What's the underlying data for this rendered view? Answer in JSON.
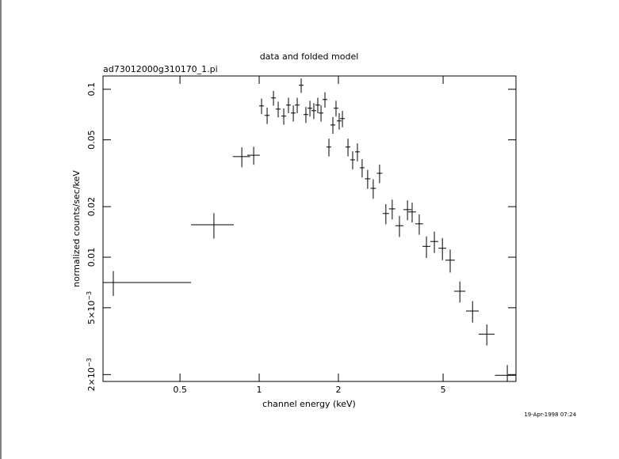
{
  "chart_data": {
    "type": "scatter",
    "title": "data and folded model",
    "subtitle": "ad73012000g310170_1.pi",
    "x_label": "channel energy (keV)",
    "y_label": "normalized counts/sec/keV",
    "annotation": "19-Apr-1998 07:24",
    "log_x": true,
    "log_y": true,
    "color": "#000000",
    "xlim": [
      0.255,
      9.46
    ],
    "ylim": [
      0.00182,
      0.12
    ],
    "xticks": [
      0.5,
      1,
      2,
      5
    ],
    "yticks": [
      {
        "value": 0.002,
        "label": "2×10−3"
      },
      {
        "value": 0.005,
        "label": "5×10−3"
      },
      0.01,
      0.02,
      0.05,
      0.1
    ],
    "x": [
      0.279,
      0.673,
      0.859,
      0.953,
      1.021,
      1.072,
      1.133,
      1.181,
      1.24,
      1.292,
      1.348,
      1.395,
      1.444,
      1.505,
      1.559,
      1.613,
      1.67,
      1.718,
      1.778,
      1.841,
      1.906,
      1.959,
      2.014,
      2.072,
      2.175,
      2.266,
      2.362,
      2.462,
      2.584,
      2.713,
      2.868,
      3.03,
      3.203,
      3.413,
      3.661,
      3.813,
      4.058,
      4.322,
      4.632,
      4.97,
      5.32,
      5.79,
      6.47,
      7.33,
      8.77
    ],
    "xerr": [
      [
        0.024,
        0.272
      ],
      [
        0.122,
        0.128
      ],
      [
        0.065,
        0.065
      ],
      [
        0.052,
        0.052
      ],
      [
        0.021,
        0.021
      ],
      [
        0.023,
        0.023
      ],
      [
        0.024,
        0.024
      ],
      [
        0.025,
        0.025
      ],
      [
        0.026,
        0.026
      ],
      [
        0.027,
        0.027
      ],
      [
        0.028,
        0.028
      ],
      [
        0.029,
        0.029
      ],
      [
        0.03,
        0.03
      ],
      [
        0.031,
        0.031
      ],
      [
        0.032,
        0.032
      ],
      [
        0.034,
        0.034
      ],
      [
        0.035,
        0.035
      ],
      [
        0.036,
        0.036
      ],
      [
        0.037,
        0.037
      ],
      [
        0.038,
        0.038
      ],
      [
        0.04,
        0.04
      ],
      [
        0.041,
        0.041
      ],
      [
        0.042,
        0.042
      ],
      [
        0.043,
        0.043
      ],
      [
        0.045,
        0.045
      ],
      [
        0.047,
        0.047
      ],
      [
        0.049,
        0.049
      ],
      [
        0.051,
        0.051
      ],
      [
        0.063,
        0.063
      ],
      [
        0.066,
        0.066
      ],
      [
        0.07,
        0.07
      ],
      [
        0.085,
        0.085
      ],
      [
        0.09,
        0.09
      ],
      [
        0.12,
        0.12
      ],
      [
        0.13,
        0.13
      ],
      [
        0.13,
        0.13
      ],
      [
        0.14,
        0.14
      ],
      [
        0.15,
        0.15
      ],
      [
        0.16,
        0.16
      ],
      [
        0.17,
        0.17
      ],
      [
        0.22,
        0.22
      ],
      [
        0.28,
        0.28
      ],
      [
        0.36,
        0.36
      ],
      [
        0.51,
        0.51
      ],
      [
        0.9,
        0.9
      ]
    ],
    "values": [
      0.00707,
      0.0156,
      0.0397,
      0.0405,
      0.0796,
      0.0699,
      0.0888,
      0.0762,
      0.0692,
      0.0805,
      0.0722,
      0.0805,
      0.1056,
      0.0707,
      0.0771,
      0.0746,
      0.0805,
      0.0722,
      0.0869,
      0.0453,
      0.0613,
      0.0771,
      0.0648,
      0.0669,
      0.0453,
      0.038,
      0.0424,
      0.0341,
      0.0293,
      0.0257,
      0.0316,
      0.0182,
      0.0194,
      0.0154,
      0.0192,
      0.0186,
      0.0158,
      0.0116,
      0.0124,
      0.0113,
      0.0096,
      0.00627,
      0.00478,
      0.00348,
      0.00198
    ],
    "yerr": [
      0.0012,
      0.0027,
      0.0054,
      0.005,
      0.0085,
      0.0078,
      0.009,
      0.0082,
      0.0077,
      0.0085,
      0.008,
      0.0085,
      0.0105,
      0.0078,
      0.0083,
      0.0081,
      0.0085,
      0.008,
      0.0092,
      0.0055,
      0.007,
      0.0083,
      0.0073,
      0.0075,
      0.0055,
      0.0047,
      0.0052,
      0.0043,
      0.0038,
      0.0034,
      0.004,
      0.0025,
      0.0026,
      0.0022,
      0.0026,
      0.0025,
      0.0022,
      0.0017,
      0.0018,
      0.0017,
      0.0015,
      0.0009,
      0.0007,
      0.0005,
      0.0003
    ]
  }
}
